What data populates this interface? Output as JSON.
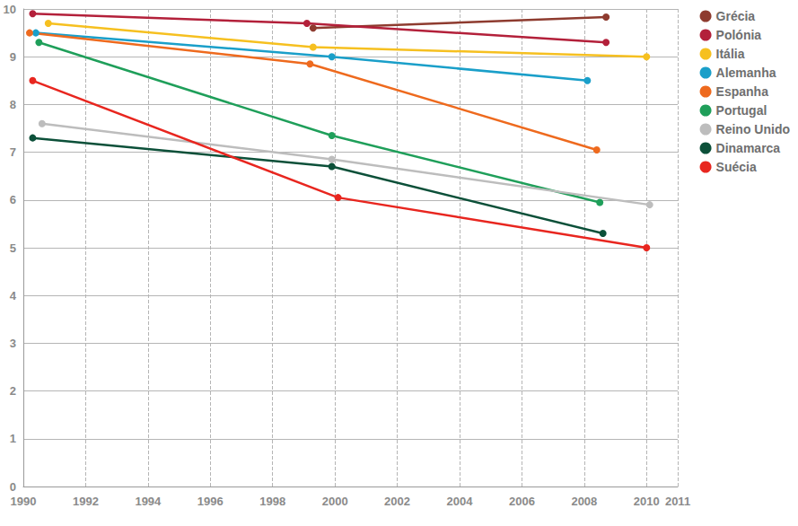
{
  "chart_data": {
    "type": "line",
    "marker": "circle",
    "grid": true,
    "legend": "top right",
    "xlim": [
      1990,
      2011
    ],
    "xticks": [
      1990,
      1992,
      1994,
      1996,
      1998,
      2000,
      2002,
      2004,
      2006,
      2008,
      2010,
      2011
    ],
    "ylim": [
      0,
      10
    ],
    "yticks": [
      0,
      1,
      2,
      3,
      4,
      5,
      6,
      7,
      8,
      9,
      10
    ],
    "series": [
      {
        "name": "Grécia",
        "color": "#8e3b2f",
        "x": [
          1999.3,
          2008.7
        ],
        "values": [
          9.6,
          9.83
        ]
      },
      {
        "name": "Polónia",
        "color": "#b3203a",
        "x": [
          1990.3,
          1999.1,
          2008.7
        ],
        "values": [
          9.9,
          9.7,
          9.3
        ]
      },
      {
        "name": "Itália",
        "color": "#f6c020",
        "x": [
          1990.8,
          1999.3,
          2010.0
        ],
        "values": [
          9.7,
          9.2,
          9.0
        ]
      },
      {
        "name": "Alemanha",
        "color": "#1a9fc9",
        "x": [
          1990.4,
          1999.9,
          2008.1
        ],
        "values": [
          9.5,
          9.0,
          8.5
        ]
      },
      {
        "name": "Espanha",
        "color": "#ee6a1e",
        "x": [
          1990.2,
          1999.2,
          2008.4
        ],
        "values": [
          9.5,
          8.85,
          7.05
        ]
      },
      {
        "name": "Portugal",
        "color": "#1f9f5a",
        "x": [
          1990.5,
          1999.9,
          2008.5
        ],
        "values": [
          9.3,
          7.35,
          5.95
        ]
      },
      {
        "name": "Reino Unido",
        "color": "#bdbdbd",
        "x": [
          1990.6,
          1999.9,
          2010.1
        ],
        "values": [
          7.6,
          6.85,
          5.9
        ]
      },
      {
        "name": "Dinamarca",
        "color": "#0c5039",
        "x": [
          1990.3,
          1999.9,
          2008.6
        ],
        "values": [
          7.3,
          6.7,
          5.3
        ]
      },
      {
        "name": "Suécia",
        "color": "#e8261f",
        "x": [
          1990.3,
          2000.1,
          2010.0
        ],
        "values": [
          8.5,
          6.05,
          5.0
        ]
      }
    ]
  }
}
